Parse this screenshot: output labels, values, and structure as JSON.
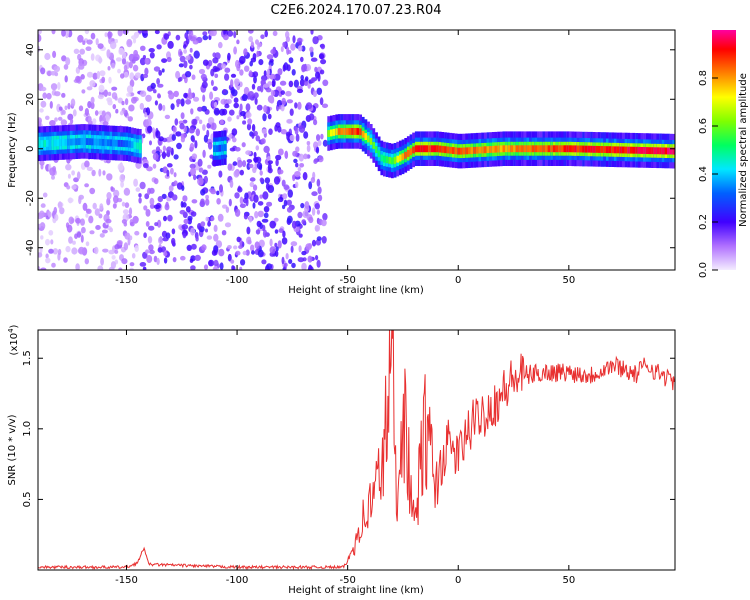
{
  "title": "C2E6.2024.170.07.23.R04",
  "colorbar": {
    "label": "Normalized spectral amplitude",
    "ticks": [
      "0.0",
      "0.2",
      "0.4",
      "0.6",
      "0.8"
    ],
    "range": [
      0,
      1
    ],
    "colors": [
      "#e0c8ff",
      "#7a00ff",
      "#2a00ff",
      "#00c8ff",
      "#00ff80",
      "#40ff00",
      "#ffff00",
      "#ff8000",
      "#ff0000",
      "#ff00a0"
    ]
  },
  "chart_data": [
    {
      "type": "heatmap",
      "xlabel": "Height of straight line (km)",
      "ylabel": "Frequency (Hz)",
      "xlim": [
        -190,
        98
      ],
      "ylim": [
        -49,
        48
      ],
      "xticks": [
        "-150",
        "-100",
        "-50",
        "0",
        "50"
      ],
      "yticks": [
        "40",
        "20",
        "0",
        "-20",
        "-40"
      ],
      "grid": false,
      "segments": [
        {
          "x_range": [
            -190,
            -144
          ],
          "noise": "sparse-light",
          "ridge_y": 2
        },
        {
          "x_range": [
            -144,
            -60
          ],
          "noise": "dense-purple",
          "ridge_y": null
        },
        {
          "x_range": [
            -60,
            -40
          ],
          "noise": "none",
          "ridge_y": 6
        },
        {
          "x_range": [
            -40,
            98
          ],
          "noise": "none",
          "ridge_y": -1
        }
      ],
      "ridge": {
        "x": [
          -190,
          -170,
          -150,
          -145,
          -110,
          -60,
          -55,
          -45,
          -40,
          -35,
          -30,
          -25,
          -20,
          -10,
          0,
          20,
          50,
          98
        ],
        "y": [
          2,
          3,
          2,
          1,
          0,
          6,
          7,
          7,
          3,
          -4,
          -5,
          -3,
          0,
          0,
          -1,
          0,
          0,
          -1
        ],
        "amplitude": [
          0.45,
          0.35,
          0.3,
          0.5,
          0.3,
          0.6,
          0.8,
          0.9,
          0.6,
          0.5,
          0.6,
          0.8,
          0.9,
          0.9,
          0.85,
          0.8,
          0.9,
          0.95
        ]
      }
    },
    {
      "type": "line",
      "xlabel": "Height of straight line (km)",
      "ylabel": "SNR (10 * v/v)",
      "scale_label": "(x10",
      "scale_exp": "4",
      "xlim": [
        -190,
        98
      ],
      "ylim": [
        0,
        1.7
      ],
      "xticks": [
        "-150",
        "-100",
        "-50",
        "0",
        "50"
      ],
      "yticks": [
        "0.5",
        "1.0",
        "1.5"
      ],
      "grid": false,
      "series": [
        {
          "color": "#e83030",
          "x": [
            -190,
            -150,
            -145,
            -142,
            -140,
            -100,
            -60,
            -52,
            -50,
            -47,
            -45,
            -40,
            -35,
            -32,
            -30,
            -28,
            -25,
            -20,
            -15,
            -10,
            -5,
            0,
            5,
            10,
            15,
            20,
            25,
            30,
            40,
            50,
            60,
            65,
            70,
            75,
            80,
            85,
            90,
            98
          ],
          "y": [
            0.02,
            0.02,
            0.05,
            0.16,
            0.04,
            0.02,
            0.02,
            0.02,
            0.06,
            0.18,
            0.3,
            0.45,
            0.7,
            1.1,
            1.7,
            0.5,
            1.2,
            0.3,
            1.0,
            0.6,
            0.9,
            0.8,
            1.0,
            1.1,
            1.15,
            1.25,
            1.35,
            1.38,
            1.4,
            1.4,
            1.38,
            1.42,
            1.45,
            1.43,
            1.38,
            1.46,
            1.4,
            1.33
          ]
        }
      ]
    }
  ]
}
